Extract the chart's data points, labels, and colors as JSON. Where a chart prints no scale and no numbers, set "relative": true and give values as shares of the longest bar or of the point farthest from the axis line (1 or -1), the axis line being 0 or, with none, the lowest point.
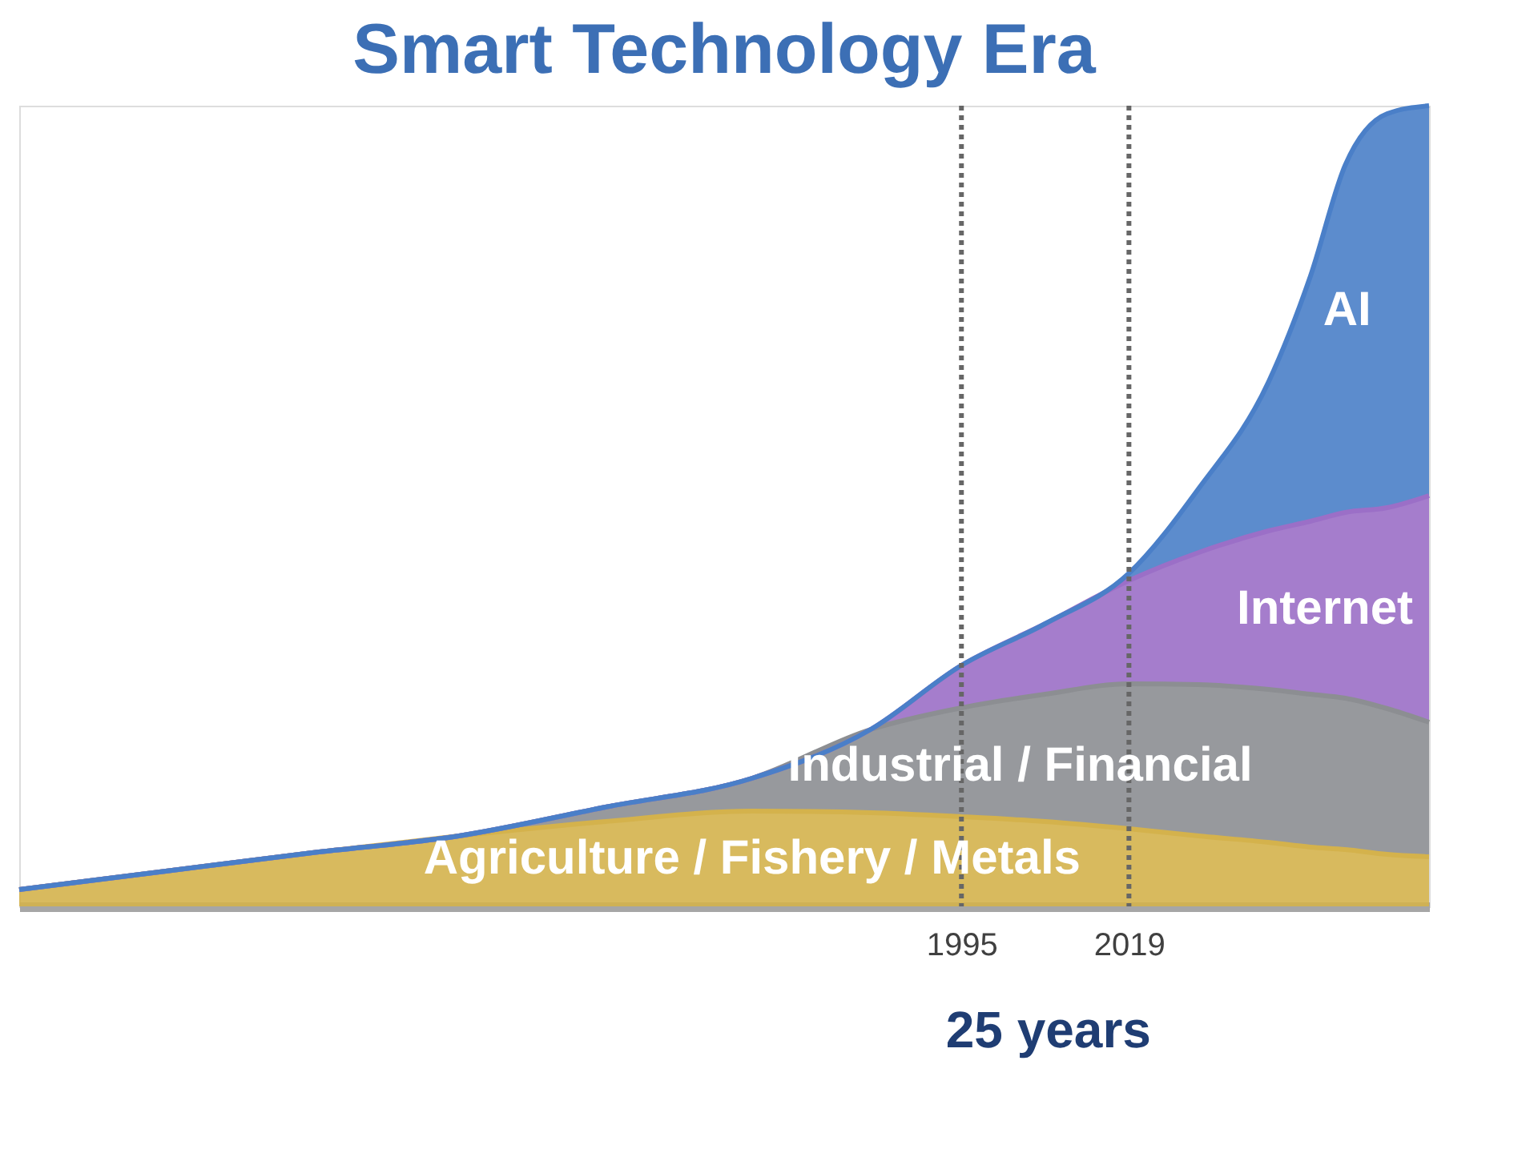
{
  "chart_data": {
    "type": "area",
    "stacked": true,
    "relative": true,
    "title": "Smart Technology Era",
    "x": [
      1860,
      1881,
      1902,
      1923,
      1944,
      1965,
      1982,
      1995,
      2007,
      2019,
      2029,
      2039,
      2045,
      2050,
      2056,
      2062
    ],
    "xlim": [
      1860,
      2062
    ],
    "xticks": [
      1995,
      2019
    ],
    "tick_labels": "x",
    "legend": false,
    "grid": false,
    "series": [
      {
        "name": "Agriculture / Fishery / Metals",
        "color": "#d4b24c",
        "values": [
          0.021,
          0.044,
          0.067,
          0.088,
          0.106,
          0.119,
          0.117,
          0.112,
          0.106,
          0.097,
          0.088,
          0.08,
          0.074,
          0.071,
          0.065,
          0.062
        ]
      },
      {
        "name": "Industrial / Financial",
        "color": "#8c8e92",
        "values": [
          0,
          0,
          0,
          0,
          0.018,
          0.041,
          0.104,
          0.136,
          0.159,
          0.181,
          0.189,
          0.191,
          0.191,
          0.189,
          0.182,
          0.168
        ]
      },
      {
        "name": "Internet",
        "color": "#9b6fc7",
        "values": [
          0,
          0,
          0,
          0,
          0,
          0,
          0,
          0.053,
          0.088,
          0.129,
          0.165,
          0.198,
          0.216,
          0.232,
          0.251,
          0.283
        ]
      },
      {
        "name": "AI",
        "color": "#4a7fc8",
        "values": [
          0,
          0,
          0,
          0,
          0,
          0,
          0,
          0,
          0,
          0.009,
          0.08,
          0.186,
          0.306,
          0.434,
          0.492,
          0.487
        ]
      }
    ],
    "ref_lines": [
      {
        "axis": "x",
        "value": 1995,
        "color": "#666666",
        "line_style": "dotted"
      },
      {
        "axis": "x",
        "value": 2019,
        "color": "#666666",
        "line_style": "dotted"
      }
    ],
    "annotations": [
      "25 years"
    ]
  }
}
